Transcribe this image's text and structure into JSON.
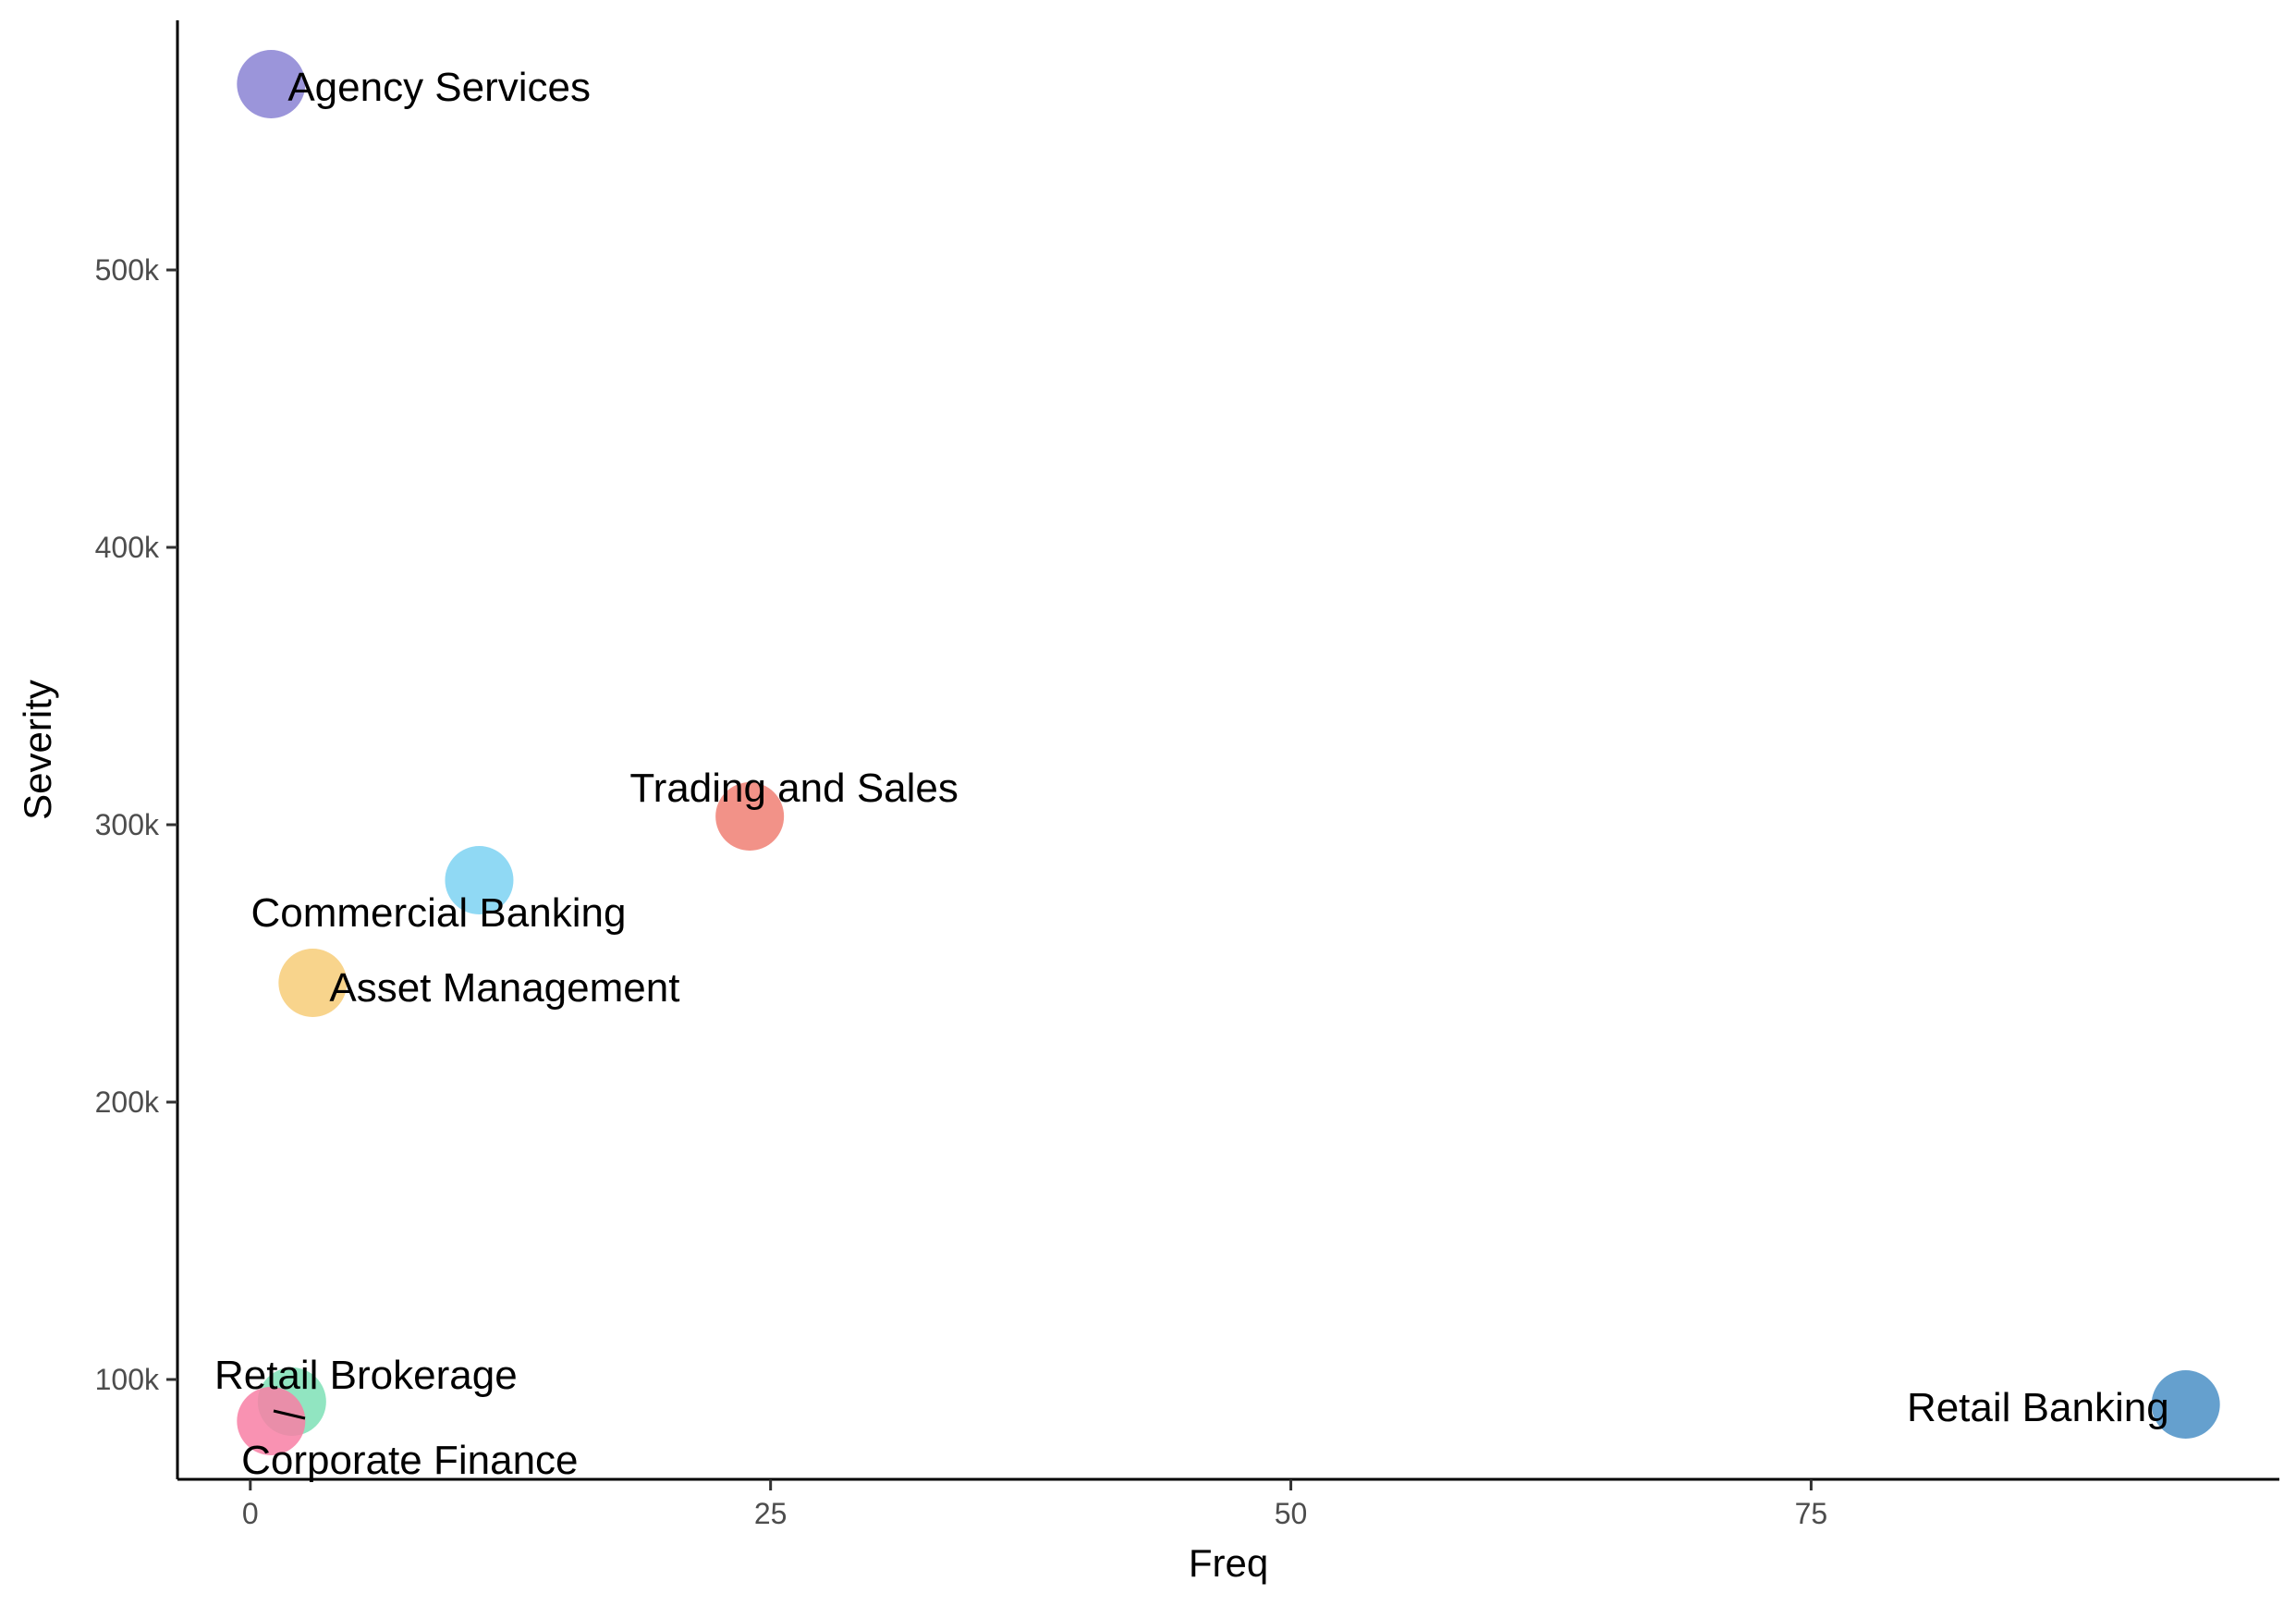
{
  "chart_data": {
    "type": "scatter",
    "xlabel": "Freq",
    "ylabel": "Severity",
    "xlim": [
      -3.5,
      97.5
    ],
    "ylim": [
      64000,
      590000
    ],
    "xticks": [
      {
        "value": 0,
        "label": "0"
      },
      {
        "value": 25,
        "label": "25"
      },
      {
        "value": 50,
        "label": "50"
      },
      {
        "value": 75,
        "label": "75"
      }
    ],
    "yticks": [
      {
        "value": 100000,
        "label": "100k"
      },
      {
        "value": 200000,
        "label": "200k"
      },
      {
        "value": 300000,
        "label": "300k"
      },
      {
        "value": 400000,
        "label": "400k"
      },
      {
        "value": 500000,
        "label": "500k"
      }
    ],
    "grid": false,
    "legend": "none",
    "points": [
      {
        "name": "Agency Services",
        "x": 1,
        "y": 567000,
        "color": "#8a82d4"
      },
      {
        "name": "Trading and Sales",
        "x": 24,
        "y": 303000,
        "color": "#f07f73"
      },
      {
        "name": "Commercial Banking",
        "x": 11,
        "y": 280000,
        "color": "#7dd2f2"
      },
      {
        "name": "Asset Management",
        "x": 3,
        "y": 243000,
        "color": "#f7cd78"
      },
      {
        "name": "Retail Brokerage",
        "x": 2,
        "y": 92000,
        "color": "#7ee1b6"
      },
      {
        "name": "Corporate Finance",
        "x": 1,
        "y": 85000,
        "color": "#f87fa5"
      },
      {
        "name": "Retail Banking",
        "x": 93,
        "y": 91000,
        "color": "#4a8fc6"
      }
    ]
  }
}
